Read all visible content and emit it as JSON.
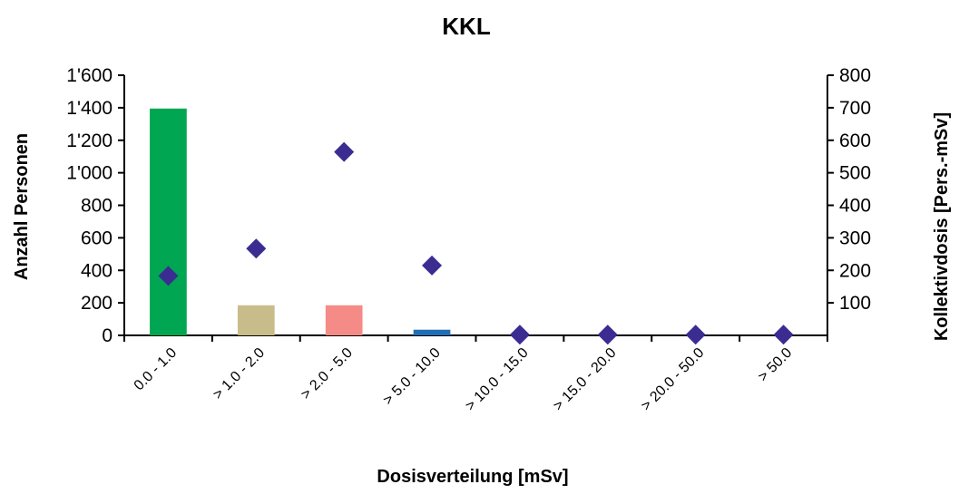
{
  "chart_data": {
    "type": "bar",
    "title": "KKL",
    "xlabel": "Dosisverteilung [mSv]",
    "ylabel": "Anzahl Personen",
    "y2label": "Kollektivdosis [Pers.-mSv]",
    "categories": [
      "0.0 - 1.0",
      "> 1.0 - 2.0",
      "> 2.0 - 5.0",
      "> 5.0 - 10.0",
      "> 10.0 - 15.0",
      "> 15.0 - 20.0",
      "> 20.0 - 50.0",
      ">  50.0"
    ],
    "ylim": [
      0,
      1600
    ],
    "y2lim": [
      0,
      800
    ],
    "yticks": [
      "0",
      "200",
      "400",
      "600",
      "800",
      "1'000",
      "1'200",
      "1'400",
      "1'600"
    ],
    "y2ticks": [
      "100",
      "200",
      "300",
      "400",
      "500",
      "600",
      "700",
      "800"
    ],
    "grid": false,
    "series": [
      {
        "type": "bar",
        "axis": "left",
        "values": [
          1395,
          185,
          185,
          35,
          0,
          0,
          0,
          0
        ],
        "colors": [
          "#00a651",
          "#c8bc8a",
          "#f58b86",
          "#1f6fb5",
          "#00a651",
          "#00a651",
          "#00a651",
          "#00a651"
        ]
      },
      {
        "type": "scatter",
        "axis": "right",
        "marker": "diamond",
        "color": "#3b2c92",
        "values": [
          183,
          267,
          564,
          215,
          2,
          2,
          2,
          2
        ]
      }
    ]
  }
}
